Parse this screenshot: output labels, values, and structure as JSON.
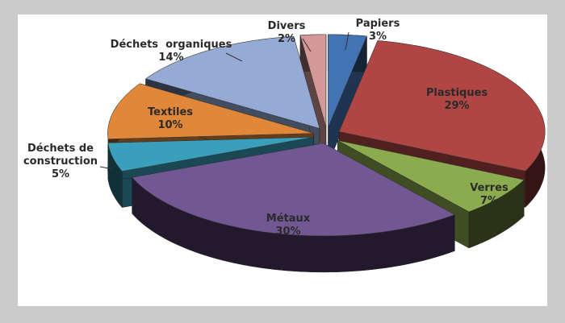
{
  "chart_data": {
    "type": "pie3d",
    "categories": [
      "Papiers",
      "Plastiques",
      "Verres",
      "Métaux",
      "Déchets de construction",
      "Textiles",
      "Déchets  organiques",
      "Divers"
    ],
    "values": [
      3,
      29,
      7,
      30,
      5,
      10,
      14,
      2
    ],
    "value_labels": [
      "3%",
      "29%",
      "7%",
      "30%",
      "5%",
      "10%",
      "14%",
      "2%"
    ],
    "colors": [
      "#4373b3",
      "#b04644",
      "#8cab4e",
      "#715893",
      "#3a9fba",
      "#e08739",
      "#95abd6",
      "#d39897"
    ]
  }
}
